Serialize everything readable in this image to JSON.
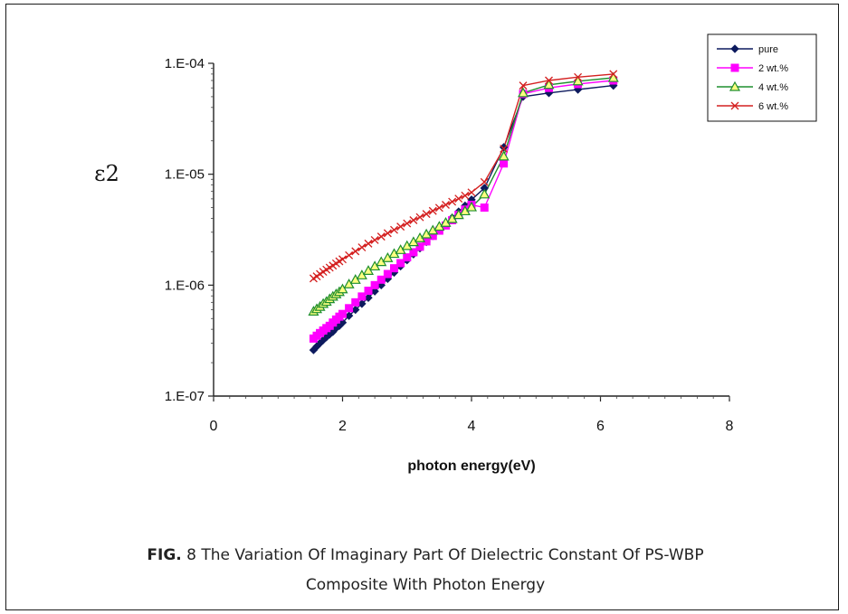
{
  "chart_data": {
    "type": "scatter",
    "ylabel": "ε2",
    "xlabel": "photon energy(eV)",
    "x_ticks": [
      "0",
      "2",
      "4",
      "6",
      "8"
    ],
    "y_ticks": [
      "1.E-07",
      "1.E-06",
      "1.E-05",
      "1.E-04"
    ],
    "xlim": [
      0,
      8
    ],
    "ylim": [
      1e-07,
      0.0001
    ],
    "yscale": "log",
    "legend_position": "top-right",
    "series": [
      {
        "name": "pure",
        "color": "#0d1a5e",
        "marker": "diamond",
        "x": [
          1.55,
          1.6,
          1.65,
          1.7,
          1.75,
          1.8,
          1.85,
          1.9,
          1.95,
          2.0,
          2.1,
          2.2,
          2.3,
          2.4,
          2.5,
          2.6,
          2.7,
          2.8,
          2.9,
          3.0,
          3.1,
          3.2,
          3.3,
          3.4,
          3.5,
          3.6,
          3.7,
          3.8,
          3.9,
          4.0,
          4.2,
          4.5,
          4.8,
          5.2,
          5.65,
          6.2
        ],
        "y": [
          2.6e-07,
          2.8e-07,
          3e-07,
          3.2e-07,
          3.4e-07,
          3.6e-07,
          3.8e-07,
          4.1e-07,
          4.3e-07,
          4.6e-07,
          5.3e-07,
          6e-07,
          6.8e-07,
          7.7e-07,
          8.8e-07,
          1e-06,
          1.14e-06,
          1.3e-06,
          1.48e-06,
          1.68e-06,
          1.9e-06,
          2.15e-06,
          2.45e-06,
          2.78e-06,
          3.15e-06,
          3.58e-06,
          4.05e-06,
          4.6e-06,
          5.2e-06,
          5.9e-06,
          7.5e-06,
          1.75e-05,
          5e-05,
          5.4e-05,
          5.8e-05,
          6.3e-05
        ]
      },
      {
        "name": "2 wt.%",
        "color": "#ff00ff",
        "marker": "square",
        "x": [
          1.55,
          1.6,
          1.65,
          1.7,
          1.75,
          1.8,
          1.85,
          1.9,
          1.95,
          2.0,
          2.1,
          2.2,
          2.3,
          2.4,
          2.5,
          2.6,
          2.7,
          2.8,
          2.9,
          3.0,
          3.1,
          3.2,
          3.3,
          3.4,
          3.5,
          3.6,
          3.7,
          3.8,
          3.9,
          4.0,
          4.2,
          4.5,
          4.8,
          5.2,
          5.65,
          6.2
        ],
        "y": [
          3.3e-07,
          3.5e-07,
          3.7e-07,
          3.9e-07,
          4.1e-07,
          4.3e-07,
          4.6e-07,
          4.9e-07,
          5.2e-07,
          5.5e-07,
          6.2e-07,
          7e-07,
          7.9e-07,
          8.9e-07,
          1e-06,
          1.12e-06,
          1.26e-06,
          1.42e-06,
          1.58e-06,
          1.78e-06,
          1.98e-06,
          2.22e-06,
          2.48e-06,
          2.78e-06,
          3.1e-06,
          3.45e-06,
          3.85e-06,
          4.3e-06,
          4.8e-06,
          5.3e-06,
          5e-06,
          1.25e-05,
          5.3e-05,
          6e-05,
          6.5e-05,
          7e-05
        ]
      },
      {
        "name": "4 wt.%",
        "color": "#1f8f2e",
        "marker": "triangle",
        "x": [
          1.55,
          1.6,
          1.65,
          1.7,
          1.75,
          1.8,
          1.85,
          1.9,
          1.95,
          2.0,
          2.1,
          2.2,
          2.3,
          2.4,
          2.5,
          2.6,
          2.7,
          2.8,
          2.9,
          3.0,
          3.1,
          3.2,
          3.3,
          3.4,
          3.5,
          3.6,
          3.7,
          3.8,
          3.9,
          4.0,
          4.2,
          4.5,
          4.8,
          5.2,
          5.65,
          6.2
        ],
        "y": [
          5.8e-07,
          6.1e-07,
          6.4e-07,
          6.8e-07,
          7.1e-07,
          7.5e-07,
          7.9e-07,
          8.3e-07,
          8.7e-07,
          9.2e-07,
          1.02e-06,
          1.12e-06,
          1.23e-06,
          1.35e-06,
          1.48e-06,
          1.62e-06,
          1.76e-06,
          1.92e-06,
          2.08e-06,
          2.26e-06,
          2.45e-06,
          2.66e-06,
          2.88e-06,
          3.12e-06,
          3.38e-06,
          3.66e-06,
          3.96e-06,
          4.3e-06,
          4.65e-06,
          5.05e-06,
          6.6e-06,
          1.45e-05,
          5.4e-05,
          6.4e-05,
          6.9e-05,
          7.4e-05
        ]
      },
      {
        "name": "6 wt.%",
        "color": "#d42020",
        "marker": "x",
        "x": [
          1.55,
          1.6,
          1.65,
          1.7,
          1.75,
          1.8,
          1.85,
          1.9,
          1.95,
          2.0,
          2.1,
          2.2,
          2.3,
          2.4,
          2.5,
          2.6,
          2.7,
          2.8,
          2.9,
          3.0,
          3.1,
          3.2,
          3.3,
          3.4,
          3.5,
          3.6,
          3.7,
          3.8,
          3.9,
          4.0,
          4.2,
          4.5,
          4.8,
          5.2,
          5.65,
          6.2
        ],
        "y": [
          1.15e-06,
          1.2e-06,
          1.26e-06,
          1.32e-06,
          1.38e-06,
          1.44e-06,
          1.5e-06,
          1.57e-06,
          1.64e-06,
          1.71e-06,
          1.86e-06,
          2.02e-06,
          2.19e-06,
          2.37e-06,
          2.55e-06,
          2.74e-06,
          2.94e-06,
          3.15e-06,
          3.37e-06,
          3.6e-06,
          3.85e-06,
          4.1e-06,
          4.38e-06,
          4.67e-06,
          4.98e-06,
          5.3e-06,
          5.65e-06,
          6.02e-06,
          6.42e-06,
          6.85e-06,
          8.5e-06,
          1.7e-05,
          6.3e-05,
          7e-05,
          7.5e-05,
          8e-05
        ]
      }
    ]
  },
  "caption": {
    "fig_label": "FIG.",
    "line1": " 8 The  Variation Of  Imaginary Part Of Dielectric Constant Of PS-WBP",
    "line2": "Composite With  Photon Energy"
  }
}
